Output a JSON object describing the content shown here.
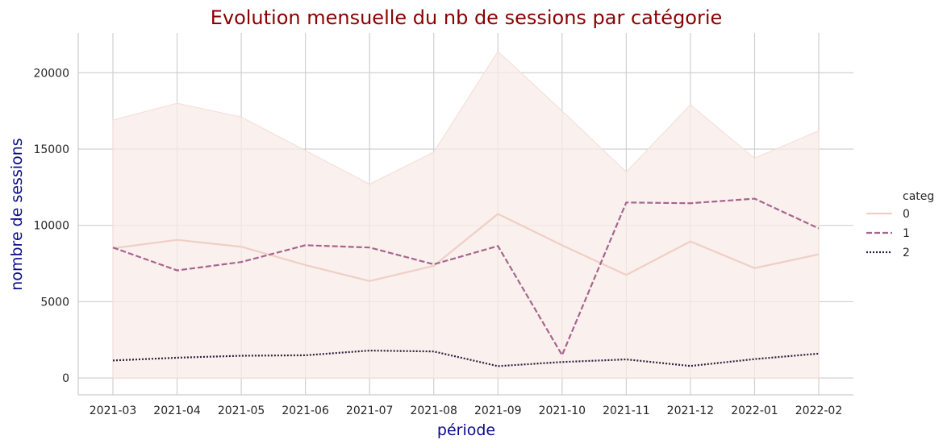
{
  "chart_data": {
    "type": "line",
    "title": "Evolution mensuelle du nb de sessions par catégorie",
    "xlabel": "période",
    "ylabel": "nombre de sessions",
    "categories": [
      "2021-03",
      "2021-04",
      "2021-05",
      "2021-06",
      "2021-07",
      "2021-08",
      "2021-09",
      "2021-10",
      "2021-11",
      "2021-12",
      "2022-01",
      "2022-02"
    ],
    "y_ticks": [
      0,
      5000,
      10000,
      15000,
      20000
    ],
    "y_tick_labels": [
      "0",
      "5000",
      "10000",
      "15000",
      "20000"
    ],
    "ylim": [
      -1100,
      22600
    ],
    "grid": true,
    "legend_title": "categ",
    "legend_position": "right",
    "band": {
      "series": "0",
      "upper": [
        16900,
        18000,
        17100,
        14900,
        12700,
        14800,
        21400,
        17500,
        13500,
        17900,
        14400,
        16200
      ],
      "lower": [
        0,
        0,
        0,
        0,
        0,
        0,
        0,
        0,
        0,
        0,
        0,
        0
      ],
      "color": "#f8ebe7",
      "edge_color": "#f3dcd6"
    },
    "series": [
      {
        "name": "0",
        "style": "solid",
        "color": "#efcfc6",
        "values": [
          8500,
          9050,
          8600,
          7400,
          6350,
          7350,
          10750,
          8700,
          6750,
          8950,
          7200,
          8100
        ]
      },
      {
        "name": "1",
        "style": "dashed",
        "color": "#a7648f",
        "values": [
          8550,
          7050,
          7600,
          8700,
          8550,
          7450,
          8650,
          1500,
          11500,
          11450,
          11750,
          9800
        ]
      },
      {
        "name": "2",
        "style": "dotted",
        "color": "#2c1e3d",
        "values": [
          1150,
          1330,
          1460,
          1490,
          1800,
          1740,
          780,
          1050,
          1220,
          790,
          1240,
          1600
        ]
      }
    ],
    "colors": {
      "title": "#8b0000",
      "axis_label": "#0b0b8a",
      "grid": "#d0d0d0",
      "spine": "#cccccc"
    }
  }
}
